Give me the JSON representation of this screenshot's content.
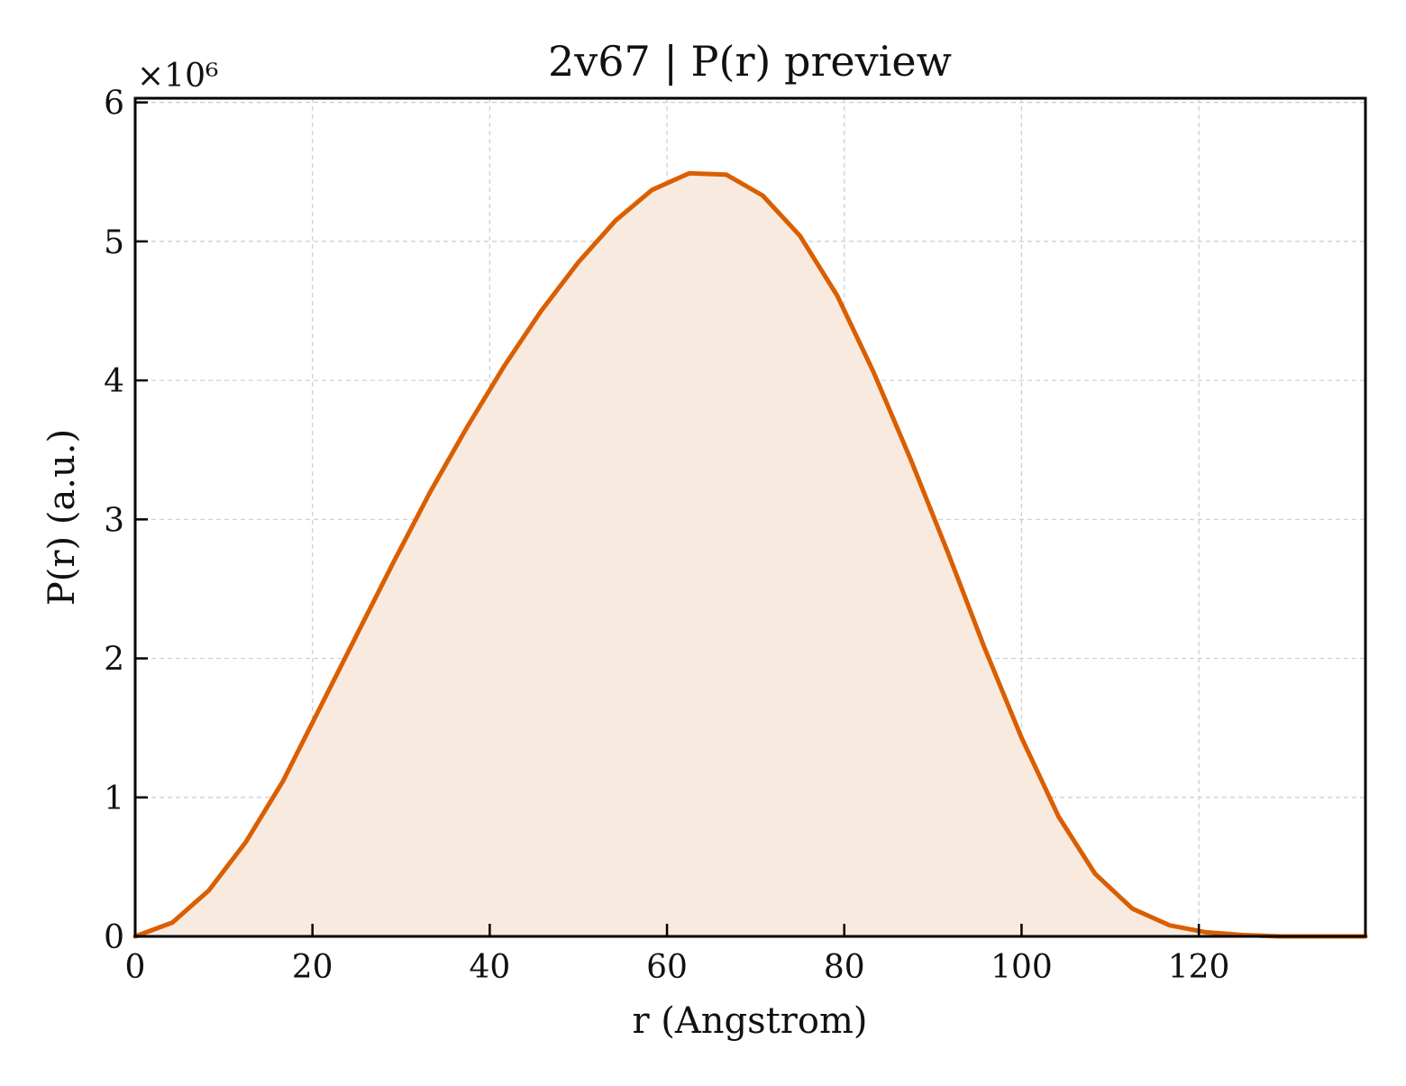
{
  "chart_data": {
    "type": "area",
    "title": "2v67 | P(r) preview",
    "xlabel": "r (Angstrom)",
    "ylabel": "P(r) (a.u.)",
    "y_multiplier_label": "×10⁶",
    "xlim": [
      0,
      138.8
    ],
    "ylim": [
      0,
      6.03
    ],
    "x_ticks": [
      0,
      20,
      40,
      60,
      80,
      100,
      120
    ],
    "y_ticks": [
      0,
      1,
      2,
      3,
      4,
      5,
      6
    ],
    "grid": true,
    "colors": {
      "line": "#d95f02",
      "fill": "#f9eadf"
    },
    "series": [
      {
        "x": [
          0,
          4.2,
          8.3,
          12.5,
          16.7,
          20.8,
          25.0,
          29.2,
          33.3,
          37.5,
          41.7,
          45.8,
          50.0,
          54.2,
          58.3,
          62.5,
          66.7,
          70.8,
          75.0,
          79.2,
          83.3,
          87.5,
          91.7,
          95.8,
          100.0,
          104.2,
          108.3,
          112.5,
          116.7,
          120.8,
          125.0,
          129.2,
          133.3,
          137.5,
          138.8
        ],
        "y": [
          0.0,
          0.1,
          0.33,
          0.68,
          1.12,
          1.64,
          2.17,
          2.7,
          3.2,
          3.67,
          4.11,
          4.5,
          4.85,
          5.15,
          5.37,
          5.49,
          5.48,
          5.33,
          5.04,
          4.61,
          4.06,
          3.43,
          2.76,
          2.08,
          1.43,
          0.86,
          0.45,
          0.2,
          0.08,
          0.03,
          0.01,
          0.0,
          0.0,
          0.0,
          0.0
        ]
      }
    ]
  }
}
